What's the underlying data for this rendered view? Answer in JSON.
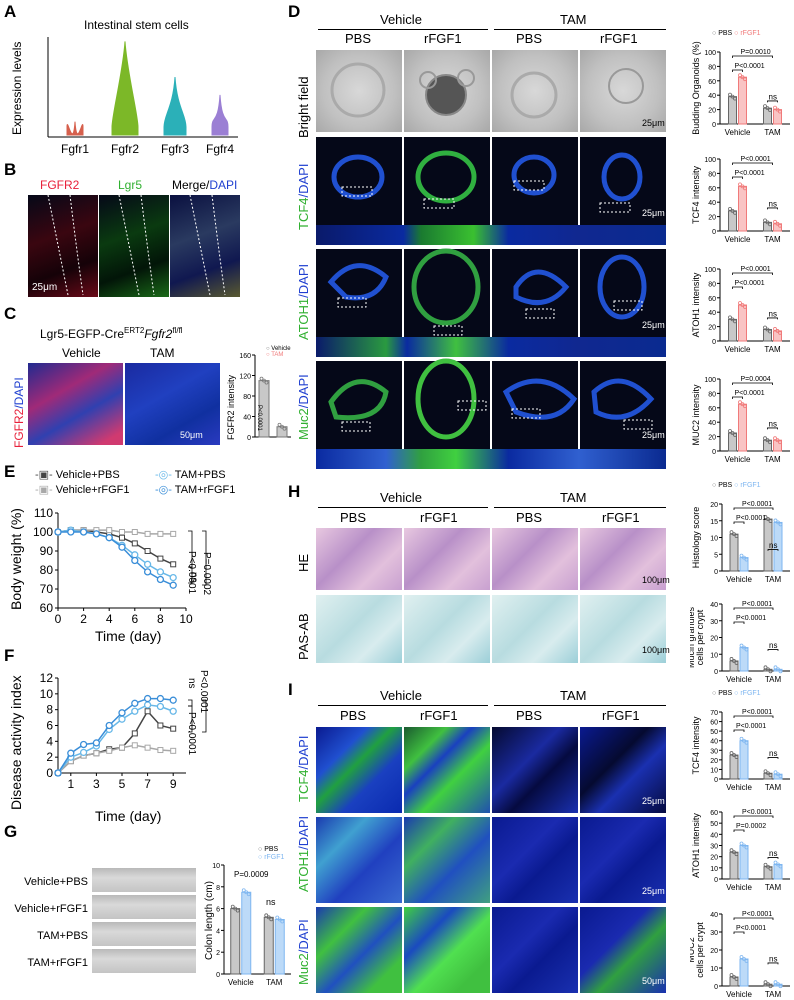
{
  "panels": {
    "A": {
      "letter": "A",
      "title": "Intestinal stem cells",
      "ylabel": "Expression levels",
      "genes": [
        "Fgfr1",
        "Fgfr2",
        "Fgfr3",
        "Fgfr4"
      ]
    },
    "B": {
      "letter": "B",
      "ch1": "FGFR2",
      "ch2": "Lgr5",
      "ch3": "Merge/",
      "ch3b": "DAPI",
      "scale": "25μm"
    },
    "C": {
      "letter": "C",
      "genotype": "Lgr5-EGFP-Cre",
      "sup": "ERT2",
      "gene": "Fgfr2",
      "gsup": "fl/fl",
      "col1": "Vehicle",
      "col2": "TAM",
      "stain1": "FGFR2",
      "stain2": "/DAPI",
      "scale": "50μm",
      "ylabel": "FGFR2 intensity",
      "leg1": "Vehicle",
      "leg2": "TAM",
      "p": "P<0.0001",
      "yticks": [
        "0",
        "40",
        "80",
        "120",
        "160"
      ]
    },
    "D": {
      "letter": "D",
      "group1": "Vehicle",
      "group2": "TAM",
      "cols": [
        "PBS",
        "rFGF1",
        "PBS",
        "rFGF1"
      ],
      "rows": [
        {
          "a": "Bright field",
          "b": ""
        },
        {
          "a": "TCF4",
          "b": "/DAPI"
        },
        {
          "a": "ATOH1",
          "b": "/DAPI"
        },
        {
          "a": "Muc2",
          "b": "/DAPI"
        }
      ],
      "scales": [
        "25μm",
        "25μm",
        "25μm",
        "25μm"
      ],
      "leg1": "PBS",
      "leg2": "rFGF1",
      "charts": [
        {
          "ylabel": "Budding Organoids (%)",
          "yticks": [
            "0",
            "20",
            "40",
            "60",
            "80",
            "100"
          ],
          "p1": "P<0.0001",
          "p2": "P=0.0010",
          "ns": "ns"
        },
        {
          "ylabel": "TCF4 intensity",
          "yticks": [
            "0",
            "20",
            "40",
            "60",
            "80",
            "100"
          ],
          "p1": "P<0.0001",
          "p2": "P<0.0001",
          "ns": "ns"
        },
        {
          "ylabel": "ATOH1 intensity",
          "yticks": [
            "0",
            "20",
            "40",
            "60",
            "80",
            "100"
          ],
          "p1": "P<0.0001",
          "p2": "P<0.0001",
          "ns": "ns"
        },
        {
          "ylabel": "MUC2 intensity",
          "yticks": [
            "0",
            "20",
            "40",
            "60",
            "80",
            "100"
          ],
          "p1": "P<0.0001",
          "p2": "P=0.0004",
          "ns": "ns"
        }
      ],
      "xcats": [
        "Vehicle",
        "TAM"
      ]
    },
    "E": {
      "letter": "E",
      "leg": [
        "Vehicle+PBS",
        "Vehicle+rFGF1",
        "TAM+PBS",
        "TAM+rFGF1"
      ],
      "ylabel": "Body weight (%)",
      "xlabel": "Time (day)",
      "p1": "P<0.0001",
      "p2": "P=0.0002",
      "ns": "ns",
      "yticks": [
        "60",
        "70",
        "80",
        "90",
        "100",
        "110"
      ],
      "xticks": [
        "0",
        "2",
        "4",
        "6",
        "8",
        "10"
      ]
    },
    "F": {
      "letter": "F",
      "ylabel": "Disease activity index",
      "xlabel": "Time (day)",
      "p1": "P<0.0001",
      "p2": "P<0.0001",
      "ns": "ns",
      "yticks": [
        "0",
        "2",
        "4",
        "6",
        "8",
        "10",
        "12"
      ],
      "xticks": [
        "1",
        "3",
        "5",
        "7",
        "9"
      ]
    },
    "G": {
      "letter": "G",
      "rows": [
        "Vehicle+PBS",
        "Vehicle+rFGF1",
        "TAM+PBS",
        "TAM+rFGF1"
      ],
      "ylabel": "Colon length (cm)",
      "leg1": "PBS",
      "leg2": "rFGF1",
      "p": "P=0.0009",
      "ns": "ns",
      "yticks": [
        "0",
        "2",
        "4",
        "6",
        "8",
        "10"
      ],
      "xcats": [
        "Vehicle",
        "TAM"
      ]
    },
    "H": {
      "letter": "H",
      "group1": "Vehicle",
      "group2": "TAM",
      "cols": [
        "PBS",
        "rFGF1",
        "PBS",
        "rFGF1"
      ],
      "rows": [
        "HE",
        "PAS-AB"
      ],
      "scales": [
        "100μm",
        "100μm"
      ],
      "leg1": "PBS",
      "leg2": "rFGF1",
      "charts": [
        {
          "ylabel": "Histology score",
          "yticks": [
            "0",
            "5",
            "10",
            "15",
            "20"
          ],
          "p1": "P<0.0001",
          "p2": "P<0.0001",
          "ns": "ns"
        },
        {
          "ylabel": "Mucin granules",
          "ylabel2": "cells per crypt",
          "yticks": [
            "0",
            "10",
            "20",
            "30",
            "40"
          ],
          "p1": "P<0.0001",
          "p2": "P<0.0001",
          "ns": "ns"
        }
      ],
      "xcats": [
        "Vehicle",
        "TAM"
      ]
    },
    "I": {
      "letter": "I",
      "group1": "Vehicle",
      "group2": "TAM",
      "cols": [
        "PBS",
        "rFGF1",
        "PBS",
        "rFGF1"
      ],
      "rows": [
        {
          "a": "TCF4",
          "b": "/DAPI"
        },
        {
          "a": "ATOH1",
          "b": "/DAPI"
        },
        {
          "a": "Muc2",
          "b": "/DAPI"
        }
      ],
      "scales": [
        "25μm",
        "25μm",
        "50μm"
      ],
      "leg1": "PBS",
      "leg2": "rFGF1",
      "charts": [
        {
          "ylabel": "TCF4 intensity",
          "yticks": [
            "0",
            "10",
            "20",
            "30",
            "40",
            "50",
            "60",
            "70"
          ],
          "p1": "P<0.0001",
          "p2": "P<0.0001",
          "ns": "ns"
        },
        {
          "ylabel": "ATOH1 intensity",
          "yticks": [
            "0",
            "10",
            "20",
            "30",
            "40",
            "50",
            "60"
          ],
          "p1": "P=0.0002",
          "p2": "P<0.0001",
          "ns": "ns"
        },
        {
          "ylabel": "MUC2",
          "ylabel2": " cells per crypt",
          "yticks": [
            "0",
            "10",
            "20",
            "30",
            "40"
          ],
          "p1": "P<0.0001",
          "p2": "P<0.0001",
          "ns": "ns"
        }
      ],
      "xcats": [
        "Vehicle",
        "TAM"
      ]
    }
  },
  "chart_data": [
    {
      "type": "violin",
      "panel": "A",
      "title": "Intestinal stem cells",
      "categories": [
        "Fgfr1",
        "Fgfr2",
        "Fgfr3",
        "Fgfr4"
      ],
      "ylabel": "Expression levels",
      "ylim": [
        0,
        2.2
      ],
      "peaks": [
        0.3,
        2.1,
        1.3,
        0.9
      ],
      "colors": [
        "#d6604d",
        "#7cb828",
        "#2bb0b8",
        "#9b7fd4"
      ]
    },
    {
      "type": "bar",
      "panel": "C",
      "categories": [
        "Vehicle",
        "TAM"
      ],
      "values": [
        110,
        20
      ],
      "ylim": [
        0,
        160
      ],
      "ylabel": "FGFR2 intensity"
    },
    {
      "type": "bar",
      "panel": "D-bud",
      "categories": [
        "Vehicle",
        "TAM"
      ],
      "series": [
        {
          "name": "PBS",
          "values": [
            38,
            22
          ]
        },
        {
          "name": "rFGF1",
          "values": [
            65,
            20
          ]
        }
      ],
      "ylim": [
        0,
        100
      ],
      "ylabel": "Budding Organoids (%)"
    },
    {
      "type": "bar",
      "panel": "D-TCF4",
      "categories": [
        "Vehicle",
        "TAM"
      ],
      "series": [
        {
          "name": "PBS",
          "values": [
            28,
            12
          ]
        },
        {
          "name": "rFGF1",
          "values": [
            62,
            10
          ]
        }
      ],
      "ylim": [
        0,
        100
      ],
      "ylabel": "TCF4 intensity"
    },
    {
      "type": "bar",
      "panel": "D-ATOH1",
      "categories": [
        "Vehicle",
        "TAM"
      ],
      "series": [
        {
          "name": "PBS",
          "values": [
            30,
            16
          ]
        },
        {
          "name": "rFGF1",
          "values": [
            50,
            14
          ]
        }
      ],
      "ylim": [
        0,
        100
      ],
      "ylabel": "ATOH1 intensity"
    },
    {
      "type": "bar",
      "panel": "D-MUC2",
      "categories": [
        "Vehicle",
        "TAM"
      ],
      "series": [
        {
          "name": "PBS",
          "values": [
            25,
            15
          ]
        },
        {
          "name": "rFGF1",
          "values": [
            65,
            15
          ]
        }
      ],
      "ylim": [
        0,
        100
      ],
      "ylabel": "MUC2 intensity"
    },
    {
      "type": "line",
      "panel": "E",
      "x": [
        0,
        1,
        2,
        3,
        4,
        5,
        6,
        7,
        8,
        9
      ],
      "ylim": [
        60,
        110
      ],
      "xlabel": "Time (day)",
      "ylabel": "Body weight (%)",
      "series": [
        {
          "name": "Vehicle+PBS",
          "values": [
            100,
            101,
            101,
            100,
            99,
            97,
            94,
            90,
            86,
            83
          ]
        },
        {
          "name": "Vehicle+rFGF1",
          "values": [
            100,
            101,
            101,
            101,
            101,
            100,
            100,
            99,
            99,
            99
          ]
        },
        {
          "name": "TAM+PBS",
          "values": [
            100,
            101,
            100,
            99,
            97,
            93,
            88,
            83,
            79,
            76
          ]
        },
        {
          "name": "TAM+rFGF1",
          "values": [
            100,
            100,
            100,
            99,
            97,
            92,
            85,
            79,
            75,
            72
          ]
        }
      ]
    },
    {
      "type": "line",
      "panel": "F",
      "x": [
        0,
        1,
        2,
        3,
        4,
        5,
        6,
        7,
        8,
        9
      ],
      "ylim": [
        0,
        12
      ],
      "xlabel": "Time (day)",
      "ylabel": "Disease activity index",
      "series": [
        {
          "name": "Vehicle+PBS",
          "values": [
            0,
            1.5,
            2.2,
            2.5,
            3,
            3.2,
            5,
            7.8,
            6,
            5.6
          ]
        },
        {
          "name": "Vehicle+rFGF1",
          "values": [
            0,
            1.5,
            2.2,
            2.5,
            2.8,
            3.2,
            3.5,
            3.2,
            2.9,
            2.8
          ]
        },
        {
          "name": "TAM+PBS",
          "values": [
            0,
            2,
            2.6,
            3.4,
            5.5,
            6.8,
            7.8,
            8.6,
            8.4,
            7.8
          ]
        },
        {
          "name": "TAM+rFGF1",
          "values": [
            0,
            2.5,
            3.6,
            3.8,
            6,
            7.6,
            8.8,
            9.4,
            9.4,
            9.2
          ]
        }
      ]
    },
    {
      "type": "bar",
      "panel": "G",
      "categories": [
        "Vehicle",
        "TAM"
      ],
      "series": [
        {
          "name": "PBS",
          "values": [
            6,
            5.2
          ]
        },
        {
          "name": "rFGF1",
          "values": [
            7.5,
            5
          ]
        }
      ],
      "ylim": [
        0,
        10
      ],
      "ylabel": "Colon length (cm)"
    },
    {
      "type": "bar",
      "panel": "H-score",
      "categories": [
        "Vehicle",
        "TAM"
      ],
      "series": [
        {
          "name": "PBS",
          "values": [
            11,
            15.5
          ]
        },
        {
          "name": "rFGF1",
          "values": [
            4,
            14.5
          ]
        }
      ],
      "ylim": [
        0,
        20
      ],
      "ylabel": "Histology score"
    },
    {
      "type": "bar",
      "panel": "H-mucin",
      "categories": [
        "Vehicle",
        "TAM"
      ],
      "series": [
        {
          "name": "PBS",
          "values": [
            6,
            1
          ]
        },
        {
          "name": "rFGF1",
          "values": [
            14,
            1
          ]
        }
      ],
      "ylim": [
        0,
        40
      ],
      "ylabel": "Mucin granules cells per crypt"
    },
    {
      "type": "bar",
      "panel": "I-TCF4",
      "categories": [
        "Vehicle",
        "TAM"
      ],
      "series": [
        {
          "name": "PBS",
          "values": [
            25,
            6
          ]
        },
        {
          "name": "rFGF1",
          "values": [
            40,
            5
          ]
        }
      ],
      "ylim": [
        0,
        70
      ],
      "ylabel": "TCF4 intensity"
    },
    {
      "type": "bar",
      "panel": "I-ATOH1",
      "categories": [
        "Vehicle",
        "TAM"
      ],
      "series": [
        {
          "name": "PBS",
          "values": [
            24,
            11
          ]
        },
        {
          "name": "rFGF1",
          "values": [
            30,
            13
          ]
        }
      ],
      "ylim": [
        0,
        60
      ],
      "ylabel": "ATOH1 intensity"
    },
    {
      "type": "bar",
      "panel": "I-MUC2",
      "categories": [
        "Vehicle",
        "TAM"
      ],
      "series": [
        {
          "name": "PBS",
          "values": [
            5,
            1
          ]
        },
        {
          "name": "rFGF1",
          "values": [
            15,
            1
          ]
        }
      ],
      "ylim": [
        0,
        40
      ],
      "ylabel": "MUC2 cells per crypt"
    }
  ],
  "colors": {
    "pbs": "#9a9a9a",
    "rfgf1_red": "#f07a7a",
    "rfgf1_blue": "#7eb6f0",
    "veh_pbs": "#444444",
    "veh_rfgf1": "#a8a8a8",
    "tam_pbs": "#68b8e8",
    "tam_rfgf1": "#3a8ed8",
    "fgfr2": "#e8203a",
    "lgr5": "#40c840",
    "dapi": "#3050e0",
    "tcf4": "#30c030"
  }
}
